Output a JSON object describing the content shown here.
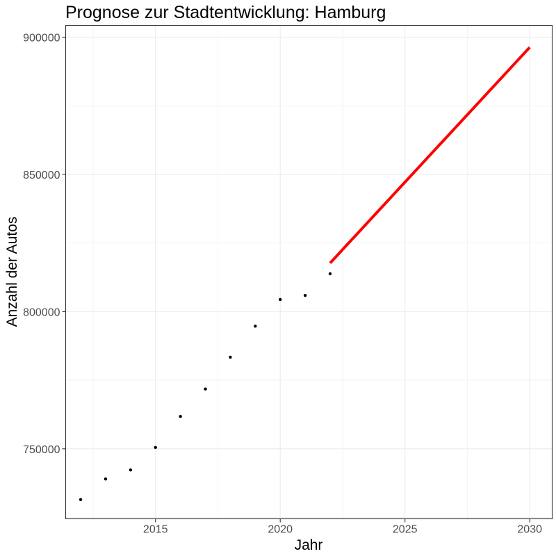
{
  "chart_data": {
    "type": "scatter",
    "title": "Prognose zur Stadtentwicklung: Hamburg",
    "xlabel": "Jahr",
    "ylabel": "Anzahl der Autos",
    "xlim": [
      2011.4,
      2030.9
    ],
    "ylim": [
      724500,
      904300
    ],
    "x_ticks": [
      2015,
      2020,
      2025,
      2030
    ],
    "y_ticks": [
      750000,
      800000,
      850000,
      900000
    ],
    "x_tick_labels": [
      "2015",
      "2020",
      "2025",
      "2030"
    ],
    "y_tick_labels": [
      "750000",
      "800000",
      "850000",
      "900000"
    ],
    "grid": true,
    "series": [
      {
        "type": "scatter",
        "color": "#000000",
        "points": [
          {
            "x": 2012,
            "y": 731500
          },
          {
            "x": 2013,
            "y": 739000
          },
          {
            "x": 2014,
            "y": 742300
          },
          {
            "x": 2015,
            "y": 750500
          },
          {
            "x": 2016,
            "y": 761800
          },
          {
            "x": 2017,
            "y": 771800
          },
          {
            "x": 2018,
            "y": 783400
          },
          {
            "x": 2019,
            "y": 794700
          },
          {
            "x": 2020,
            "y": 804400
          },
          {
            "x": 2021,
            "y": 805900
          },
          {
            "x": 2022,
            "y": 813800
          }
        ]
      },
      {
        "type": "line",
        "color": "#ff0000",
        "points": [
          {
            "x": 2022,
            "y": 817700
          },
          {
            "x": 2030,
            "y": 896300
          }
        ]
      }
    ]
  }
}
